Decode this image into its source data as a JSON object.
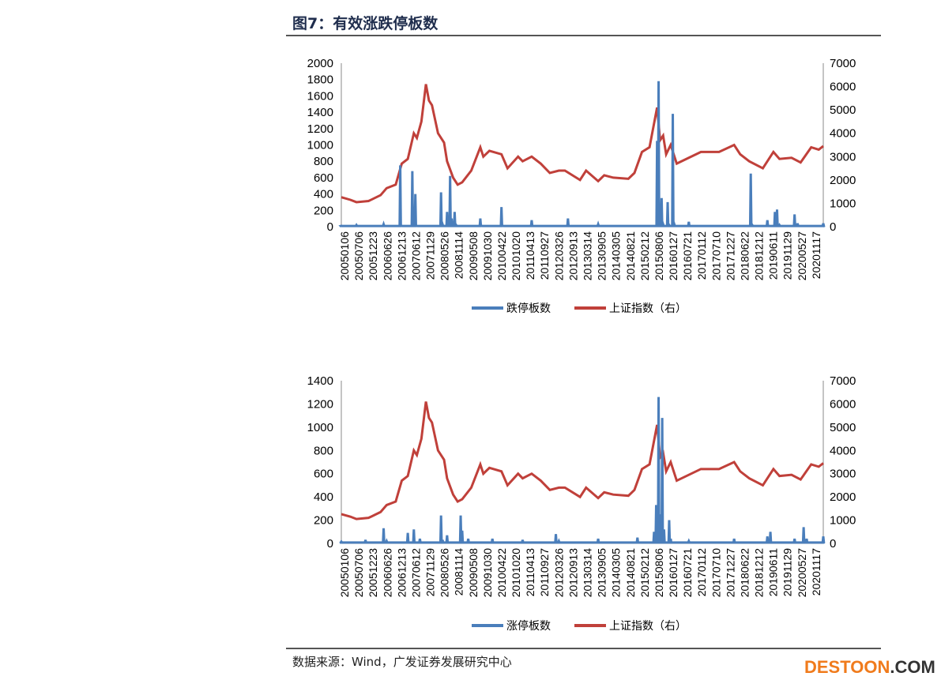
{
  "title": "图7：有效涨跌停板数",
  "source": "数据来源：Wind，广发证券发展研究中心",
  "watermark": {
    "brand": "DESTOON",
    ".com": ".COM"
  },
  "colors": {
    "blue": "#4a7ebb",
    "red": "#c0403a"
  },
  "chart_data": [
    {
      "type": "line",
      "title": "",
      "left_axis": {
        "range": [
          0,
          2000
        ],
        "ticks": [
          0,
          200,
          400,
          600,
          800,
          1000,
          1200,
          1400,
          1600,
          1800,
          2000
        ]
      },
      "right_axis": {
        "range": [
          0,
          7000
        ],
        "ticks": [
          0,
          1000,
          2000,
          3000,
          4000,
          5000,
          6000,
          7000
        ]
      },
      "x_ticks": [
        "20050106",
        "20050706",
        "20051223",
        "20060626",
        "20061213",
        "20070612",
        "20071129",
        "20080526",
        "20081114",
        "20090508",
        "20091030",
        "20100422",
        "20101020",
        "20110413",
        "20110927",
        "20120326",
        "20120913",
        "20130314",
        "20130905",
        "20140305",
        "20140821",
        "20150212",
        "20150806",
        "20160127",
        "20160721",
        "20170112",
        "20170710",
        "20171227",
        "20180622",
        "20181212",
        "20190611",
        "20191129",
        "20200527",
        "20201117"
      ],
      "legend": [
        "跌停板数",
        "上证指数（右）"
      ],
      "legend_placement": "bottom",
      "series_count": {
        "name": "跌停板数",
        "points": [
          [
            2005.0,
            10
          ],
          [
            2005.5,
            20
          ],
          [
            2006.4,
            30
          ],
          [
            2006.95,
            750
          ],
          [
            2007.0,
            10
          ],
          [
            2007.35,
            680
          ],
          [
            2007.4,
            20
          ],
          [
            2007.45,
            400
          ],
          [
            2007.5,
            10
          ],
          [
            2008.3,
            420
          ],
          [
            2008.35,
            30
          ],
          [
            2008.5,
            180
          ],
          [
            2008.6,
            620
          ],
          [
            2008.65,
            100
          ],
          [
            2008.75,
            180
          ],
          [
            2008.8,
            20
          ],
          [
            2009.6,
            100
          ],
          [
            2009.65,
            10
          ],
          [
            2010.3,
            240
          ],
          [
            2010.35,
            10
          ],
          [
            2011.3,
            80
          ],
          [
            2012.5,
            100
          ],
          [
            2013.5,
            30
          ],
          [
            2015.45,
            1050
          ],
          [
            2015.5,
            1780
          ],
          [
            2015.55,
            60
          ],
          [
            2015.6,
            350
          ],
          [
            2015.65,
            30
          ],
          [
            2015.8,
            300
          ],
          [
            2015.85,
            20
          ],
          [
            2015.97,
            1380
          ],
          [
            2016.02,
            30
          ],
          [
            2016.5,
            60
          ],
          [
            2018.55,
            650
          ],
          [
            2018.6,
            20
          ],
          [
            2019.1,
            80
          ],
          [
            2019.35,
            180
          ],
          [
            2019.42,
            210
          ],
          [
            2019.5,
            20
          ],
          [
            2020.0,
            150
          ],
          [
            2020.1,
            40
          ],
          [
            2020.95,
            40
          ]
        ]
      },
      "series_index": {
        "name": "上证指数（右）"
      }
    },
    {
      "type": "line",
      "title": "",
      "left_axis": {
        "range": [
          0,
          1400
        ],
        "ticks": [
          0,
          200,
          400,
          600,
          800,
          1000,
          1200,
          1400
        ]
      },
      "right_axis": {
        "range": [
          0,
          7000
        ],
        "ticks": [
          0,
          1000,
          2000,
          3000,
          4000,
          5000,
          6000,
          7000
        ]
      },
      "x_ticks": [
        "20050106",
        "20050706",
        "20051223",
        "20060626",
        "20061213",
        "20070612",
        "20071129",
        "20080526",
        "20081114",
        "20090508",
        "20091030",
        "20100422",
        "20101020",
        "20110413",
        "20110927",
        "20120326",
        "20120913",
        "20130314",
        "20130905",
        "20140305",
        "20140821",
        "20150212",
        "20150806",
        "20160127",
        "20160721",
        "20170112",
        "20170710",
        "20171227",
        "20180622",
        "20181212",
        "20190611",
        "20191129",
        "20200527",
        "20201117"
      ],
      "legend": [
        "涨停板数",
        "上证指数（右）"
      ],
      "legend_placement": "bottom",
      "series_count": {
        "name": "涨停板数",
        "points": [
          [
            2005.0,
            15
          ],
          [
            2005.8,
            30
          ],
          [
            2006.4,
            130
          ],
          [
            2006.5,
            20
          ],
          [
            2007.2,
            90
          ],
          [
            2007.4,
            120
          ],
          [
            2007.6,
            40
          ],
          [
            2008.3,
            240
          ],
          [
            2008.35,
            30
          ],
          [
            2008.5,
            70
          ],
          [
            2008.95,
            240
          ],
          [
            2009.0,
            110
          ],
          [
            2009.2,
            40
          ],
          [
            2010.0,
            40
          ],
          [
            2011.0,
            30
          ],
          [
            2012.1,
            80
          ],
          [
            2012.2,
            20
          ],
          [
            2013.5,
            40
          ],
          [
            2014.8,
            50
          ],
          [
            2015.35,
            100
          ],
          [
            2015.42,
            330
          ],
          [
            2015.5,
            1260
          ],
          [
            2015.55,
            250
          ],
          [
            2015.62,
            1080
          ],
          [
            2015.68,
            120
          ],
          [
            2015.85,
            200
          ],
          [
            2015.9,
            40
          ],
          [
            2016.5,
            20
          ],
          [
            2018.0,
            40
          ],
          [
            2019.1,
            60
          ],
          [
            2019.2,
            100
          ],
          [
            2020.0,
            40
          ],
          [
            2020.3,
            140
          ],
          [
            2020.4,
            40
          ],
          [
            2020.95,
            60
          ]
        ]
      },
      "series_index": {
        "name": "上证指数（右）"
      }
    }
  ],
  "sse_index": [
    [
      2005.0,
      1260
    ],
    [
      2005.3,
      1150
    ],
    [
      2005.5,
      1050
    ],
    [
      2005.9,
      1100
    ],
    [
      2006.0,
      1160
    ],
    [
      2006.3,
      1350
    ],
    [
      2006.5,
      1650
    ],
    [
      2006.8,
      1800
    ],
    [
      2007.0,
      2700
    ],
    [
      2007.2,
      2900
    ],
    [
      2007.4,
      4000
    ],
    [
      2007.5,
      3800
    ],
    [
      2007.65,
      4500
    ],
    [
      2007.8,
      6100
    ],
    [
      2007.9,
      5400
    ],
    [
      2008.0,
      5200
    ],
    [
      2008.2,
      4000
    ],
    [
      2008.4,
      3600
    ],
    [
      2008.5,
      2800
    ],
    [
      2008.7,
      2100
    ],
    [
      2008.85,
      1800
    ],
    [
      2009.0,
      1900
    ],
    [
      2009.3,
      2400
    ],
    [
      2009.6,
      3400
    ],
    [
      2009.7,
      3000
    ],
    [
      2009.9,
      3250
    ],
    [
      2010.3,
      3100
    ],
    [
      2010.5,
      2500
    ],
    [
      2010.85,
      3000
    ],
    [
      2011.0,
      2800
    ],
    [
      2011.3,
      3000
    ],
    [
      2011.6,
      2700
    ],
    [
      2011.9,
      2300
    ],
    [
      2012.2,
      2400
    ],
    [
      2012.4,
      2400
    ],
    [
      2012.9,
      2000
    ],
    [
      2013.1,
      2400
    ],
    [
      2013.5,
      1950
    ],
    [
      2013.7,
      2200
    ],
    [
      2014.0,
      2100
    ],
    [
      2014.5,
      2050
    ],
    [
      2014.7,
      2300
    ],
    [
      2014.95,
      3200
    ],
    [
      2015.2,
      3400
    ],
    [
      2015.45,
      5100
    ],
    [
      2015.55,
      3700
    ],
    [
      2015.65,
      3900
    ],
    [
      2015.75,
      3100
    ],
    [
      2015.9,
      3500
    ],
    [
      2016.1,
      2700
    ],
    [
      2016.5,
      2950
    ],
    [
      2016.9,
      3200
    ],
    [
      2017.5,
      3200
    ],
    [
      2018.0,
      3500
    ],
    [
      2018.2,
      3100
    ],
    [
      2018.5,
      2800
    ],
    [
      2018.95,
      2500
    ],
    [
      2019.3,
      3200
    ],
    [
      2019.5,
      2900
    ],
    [
      2019.9,
      2950
    ],
    [
      2020.2,
      2750
    ],
    [
      2020.55,
      3400
    ],
    [
      2020.8,
      3300
    ],
    [
      2020.95,
      3450
    ]
  ]
}
